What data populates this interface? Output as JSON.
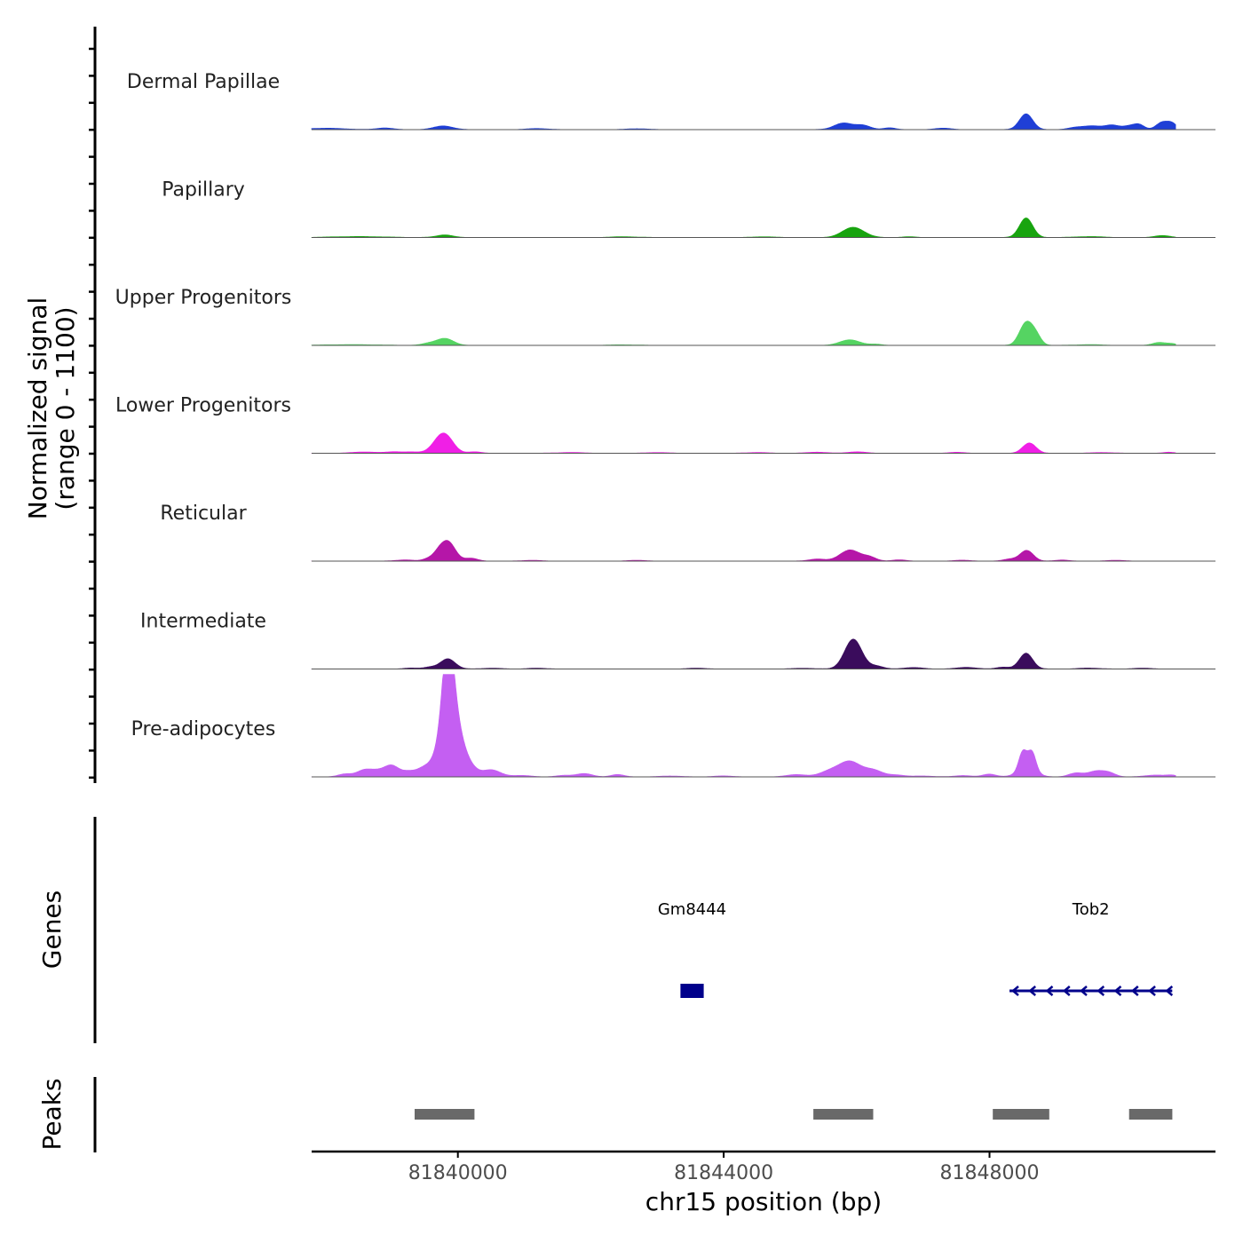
{
  "chart_data": {
    "type": "area",
    "title": "",
    "ylabel_line1": "Normalized signal",
    "ylabel_line2": "(range 0 - 1100)",
    "ylim": [
      0,
      1100
    ],
    "xlabel": "chr15 position (bp)",
    "xlim": [
      81837800,
      81851400
    ],
    "x_ticks": [
      81840000,
      81844000,
      81848000
    ],
    "x_tick_labels": [
      "81840000",
      "81844000",
      "81848000"
    ],
    "signal_end": 81850800,
    "tracks": [
      {
        "name": "Dermal Papillae",
        "color": "#1f3fd6",
        "peaks": [
          [
            81838000,
            15,
            300
          ],
          [
            81838900,
            18,
            120
          ],
          [
            81839780,
            40,
            140
          ],
          [
            81841200,
            12,
            150
          ],
          [
            81842700,
            10,
            150
          ],
          [
            81845800,
            70,
            140
          ],
          [
            81846100,
            45,
            110
          ],
          [
            81846500,
            20,
            90
          ],
          [
            81847300,
            15,
            130
          ],
          [
            81848550,
            170,
            100
          ],
          [
            81849300,
            22,
            120
          ],
          [
            81849550,
            38,
            130
          ],
          [
            81849850,
            48,
            110
          ],
          [
            81850100,
            35,
            90
          ],
          [
            81850250,
            52,
            80
          ],
          [
            81850600,
            80,
            90
          ],
          [
            81850750,
            60,
            70
          ]
        ]
      },
      {
        "name": "Papillary",
        "color": "#18a40f",
        "peaks": [
          [
            81838500,
            10,
            400
          ],
          [
            81839800,
            28,
            120
          ],
          [
            81842500,
            8,
            200
          ],
          [
            81844600,
            8,
            150
          ],
          [
            81845950,
            110,
            160
          ],
          [
            81846800,
            8,
            100
          ],
          [
            81848550,
            210,
            100
          ],
          [
            81849500,
            10,
            200
          ],
          [
            81850600,
            20,
            120
          ]
        ]
      },
      {
        "name": "Upper Progenitors",
        "color": "#55d462",
        "peaks": [
          [
            81838400,
            8,
            400
          ],
          [
            81839550,
            18,
            100
          ],
          [
            81839800,
            75,
            130
          ],
          [
            81842500,
            6,
            200
          ],
          [
            81845900,
            60,
            150
          ],
          [
            81846300,
            12,
            90
          ],
          [
            81848550,
            240,
            100
          ],
          [
            81848700,
            90,
            80
          ],
          [
            81849500,
            8,
            200
          ],
          [
            81850550,
            30,
            100
          ],
          [
            81850750,
            18,
            80
          ]
        ]
      },
      {
        "name": "Lower Progenitors",
        "color": "#f01fe6",
        "peaks": [
          [
            81838600,
            14,
            180
          ],
          [
            81839050,
            16,
            120
          ],
          [
            81839300,
            12,
            100
          ],
          [
            81839600,
            22,
            120
          ],
          [
            81839820,
            175,
            120
          ],
          [
            81839700,
            60,
            100
          ],
          [
            81840250,
            15,
            100
          ],
          [
            81841700,
            8,
            200
          ],
          [
            81843000,
            8,
            150
          ],
          [
            81844500,
            8,
            150
          ],
          [
            81845400,
            12,
            140
          ],
          [
            81846000,
            15,
            140
          ],
          [
            81847500,
            10,
            120
          ],
          [
            81848600,
            110,
            100
          ],
          [
            81849700,
            8,
            150
          ],
          [
            81850700,
            12,
            80
          ]
        ]
      },
      {
        "name": "Reticular",
        "color": "#b516a8",
        "peaks": [
          [
            81839200,
            12,
            150
          ],
          [
            81839550,
            25,
            80
          ],
          [
            81839850,
            210,
            110
          ],
          [
            81839700,
            60,
            80
          ],
          [
            81840200,
            30,
            100
          ],
          [
            81841100,
            8,
            150
          ],
          [
            81842700,
            8,
            150
          ],
          [
            81845400,
            22,
            120
          ],
          [
            81845900,
            120,
            150
          ],
          [
            81846200,
            40,
            100
          ],
          [
            81846650,
            14,
            100
          ],
          [
            81847600,
            10,
            120
          ],
          [
            81848300,
            22,
            100
          ],
          [
            81848560,
            115,
            100
          ],
          [
            81849100,
            12,
            100
          ],
          [
            81849900,
            8,
            150
          ]
        ]
      },
      {
        "name": "Intermediate",
        "color": "#3a0c5c",
        "peaks": [
          [
            81839300,
            10,
            100
          ],
          [
            81839580,
            20,
            100
          ],
          [
            81839850,
            110,
            110
          ],
          [
            81840500,
            8,
            150
          ],
          [
            81841200,
            8,
            150
          ],
          [
            81843600,
            8,
            150
          ],
          [
            81845200,
            8,
            150
          ],
          [
            81845950,
            320,
            130
          ],
          [
            81846300,
            30,
            100
          ],
          [
            81846850,
            15,
            150
          ],
          [
            81847650,
            18,
            140
          ],
          [
            81848200,
            20,
            100
          ],
          [
            81848550,
            170,
            100
          ],
          [
            81849500,
            10,
            150
          ],
          [
            81850300,
            8,
            150
          ]
        ]
      },
      {
        "name": "Pre-adipocytes",
        "color": "#c45ff2",
        "peaks": [
          [
            81838300,
            30,
            100
          ],
          [
            81838600,
            75,
            120
          ],
          [
            81838800,
            45,
            100
          ],
          [
            81839000,
            120,
            110
          ],
          [
            81839250,
            50,
            100
          ],
          [
            81839500,
            100,
            120
          ],
          [
            81839750,
            300,
            110
          ],
          [
            81839850,
            1000,
            80
          ],
          [
            81839950,
            550,
            110
          ],
          [
            81840140,
            140,
            120
          ],
          [
            81840500,
            75,
            140
          ],
          [
            81840950,
            15,
            150
          ],
          [
            81841600,
            15,
            120
          ],
          [
            81841900,
            35,
            120
          ],
          [
            81842400,
            25,
            100
          ],
          [
            81843200,
            10,
            150
          ],
          [
            81844000,
            10,
            150
          ],
          [
            81845100,
            25,
            150
          ],
          [
            81845600,
            60,
            150
          ],
          [
            81845900,
            160,
            160
          ],
          [
            81846250,
            70,
            140
          ],
          [
            81846600,
            20,
            120
          ],
          [
            81847000,
            10,
            150
          ],
          [
            81847600,
            15,
            120
          ],
          [
            81848000,
            30,
            100
          ],
          [
            81848500,
            200,
            60
          ],
          [
            81848640,
            200,
            60
          ],
          [
            81848560,
            80,
            140
          ],
          [
            81849300,
            40,
            110
          ],
          [
            81849600,
            60,
            120
          ],
          [
            81849800,
            40,
            100
          ],
          [
            81850500,
            20,
            150
          ],
          [
            81850750,
            15,
            80
          ]
        ]
      }
    ],
    "genes_label": "Genes",
    "genes": [
      {
        "name": "Gm8444",
        "start": 81843350,
        "end": 81843700,
        "strand": "+",
        "type": "block",
        "color": "#00008b"
      },
      {
        "name": "Tob2",
        "start": 81848300,
        "end": 81850750,
        "strand": "-",
        "type": "line",
        "color": "#00008b"
      }
    ],
    "peaks_label": "Peaks",
    "peak_regions": [
      [
        81839350,
        81840250
      ],
      [
        81845350,
        81846250
      ],
      [
        81848050,
        81848900
      ],
      [
        81850100,
        81850750
      ]
    ],
    "peak_color": "#696969"
  }
}
